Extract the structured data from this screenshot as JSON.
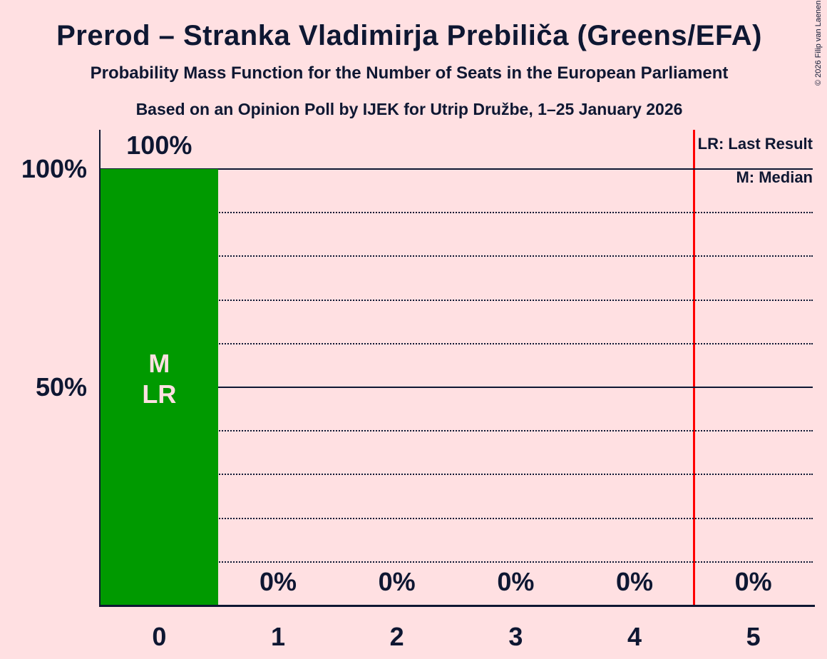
{
  "header": {
    "title": "Prerod – Stranka Vladimirja Prebiliča (Greens/EFA)",
    "subtitle": "Probability Mass Function for the Number of Seats in the European Parliament",
    "source_line": "Based on an Opinion Poll by IJEK for Utrip Družbe, 1–25 January 2026"
  },
  "copyright": "© 2026 Filip van Laenen",
  "legend": {
    "last_result": "LR: Last Result",
    "median": "M: Median"
  },
  "colors": {
    "background": "#FFE0E2",
    "text": "#0E1732",
    "bar": "#009A00",
    "bar_annotation_text": "#FFE0E2",
    "red_line": "#FF0000"
  },
  "chart_data": {
    "type": "bar",
    "title": "Prerod – Stranka Vladimirja Prebiliča (Greens/EFA)",
    "categories": [
      "0",
      "1",
      "2",
      "3",
      "4",
      "5"
    ],
    "values": [
      100,
      0,
      0,
      0,
      0,
      0
    ],
    "value_labels": [
      "100%",
      "0%",
      "0%",
      "0%",
      "0%",
      "0%"
    ],
    "ylim": [
      0,
      109
    ],
    "yticks": [
      {
        "label": "100%",
        "value": 100
      },
      {
        "label": "50%",
        "value": 50
      }
    ],
    "gridlines": {
      "step": 10,
      "solid_at": [
        50,
        100
      ],
      "dotted_range": [
        10,
        90
      ]
    },
    "legend_position": "top-right",
    "annotations": [
      {
        "category_index": 0,
        "lines": [
          "M",
          "LR"
        ],
        "value_percent": 51
      }
    ],
    "red_vertical_line_x": 4.5,
    "median_seats": 0,
    "last_result_seats": 0
  }
}
